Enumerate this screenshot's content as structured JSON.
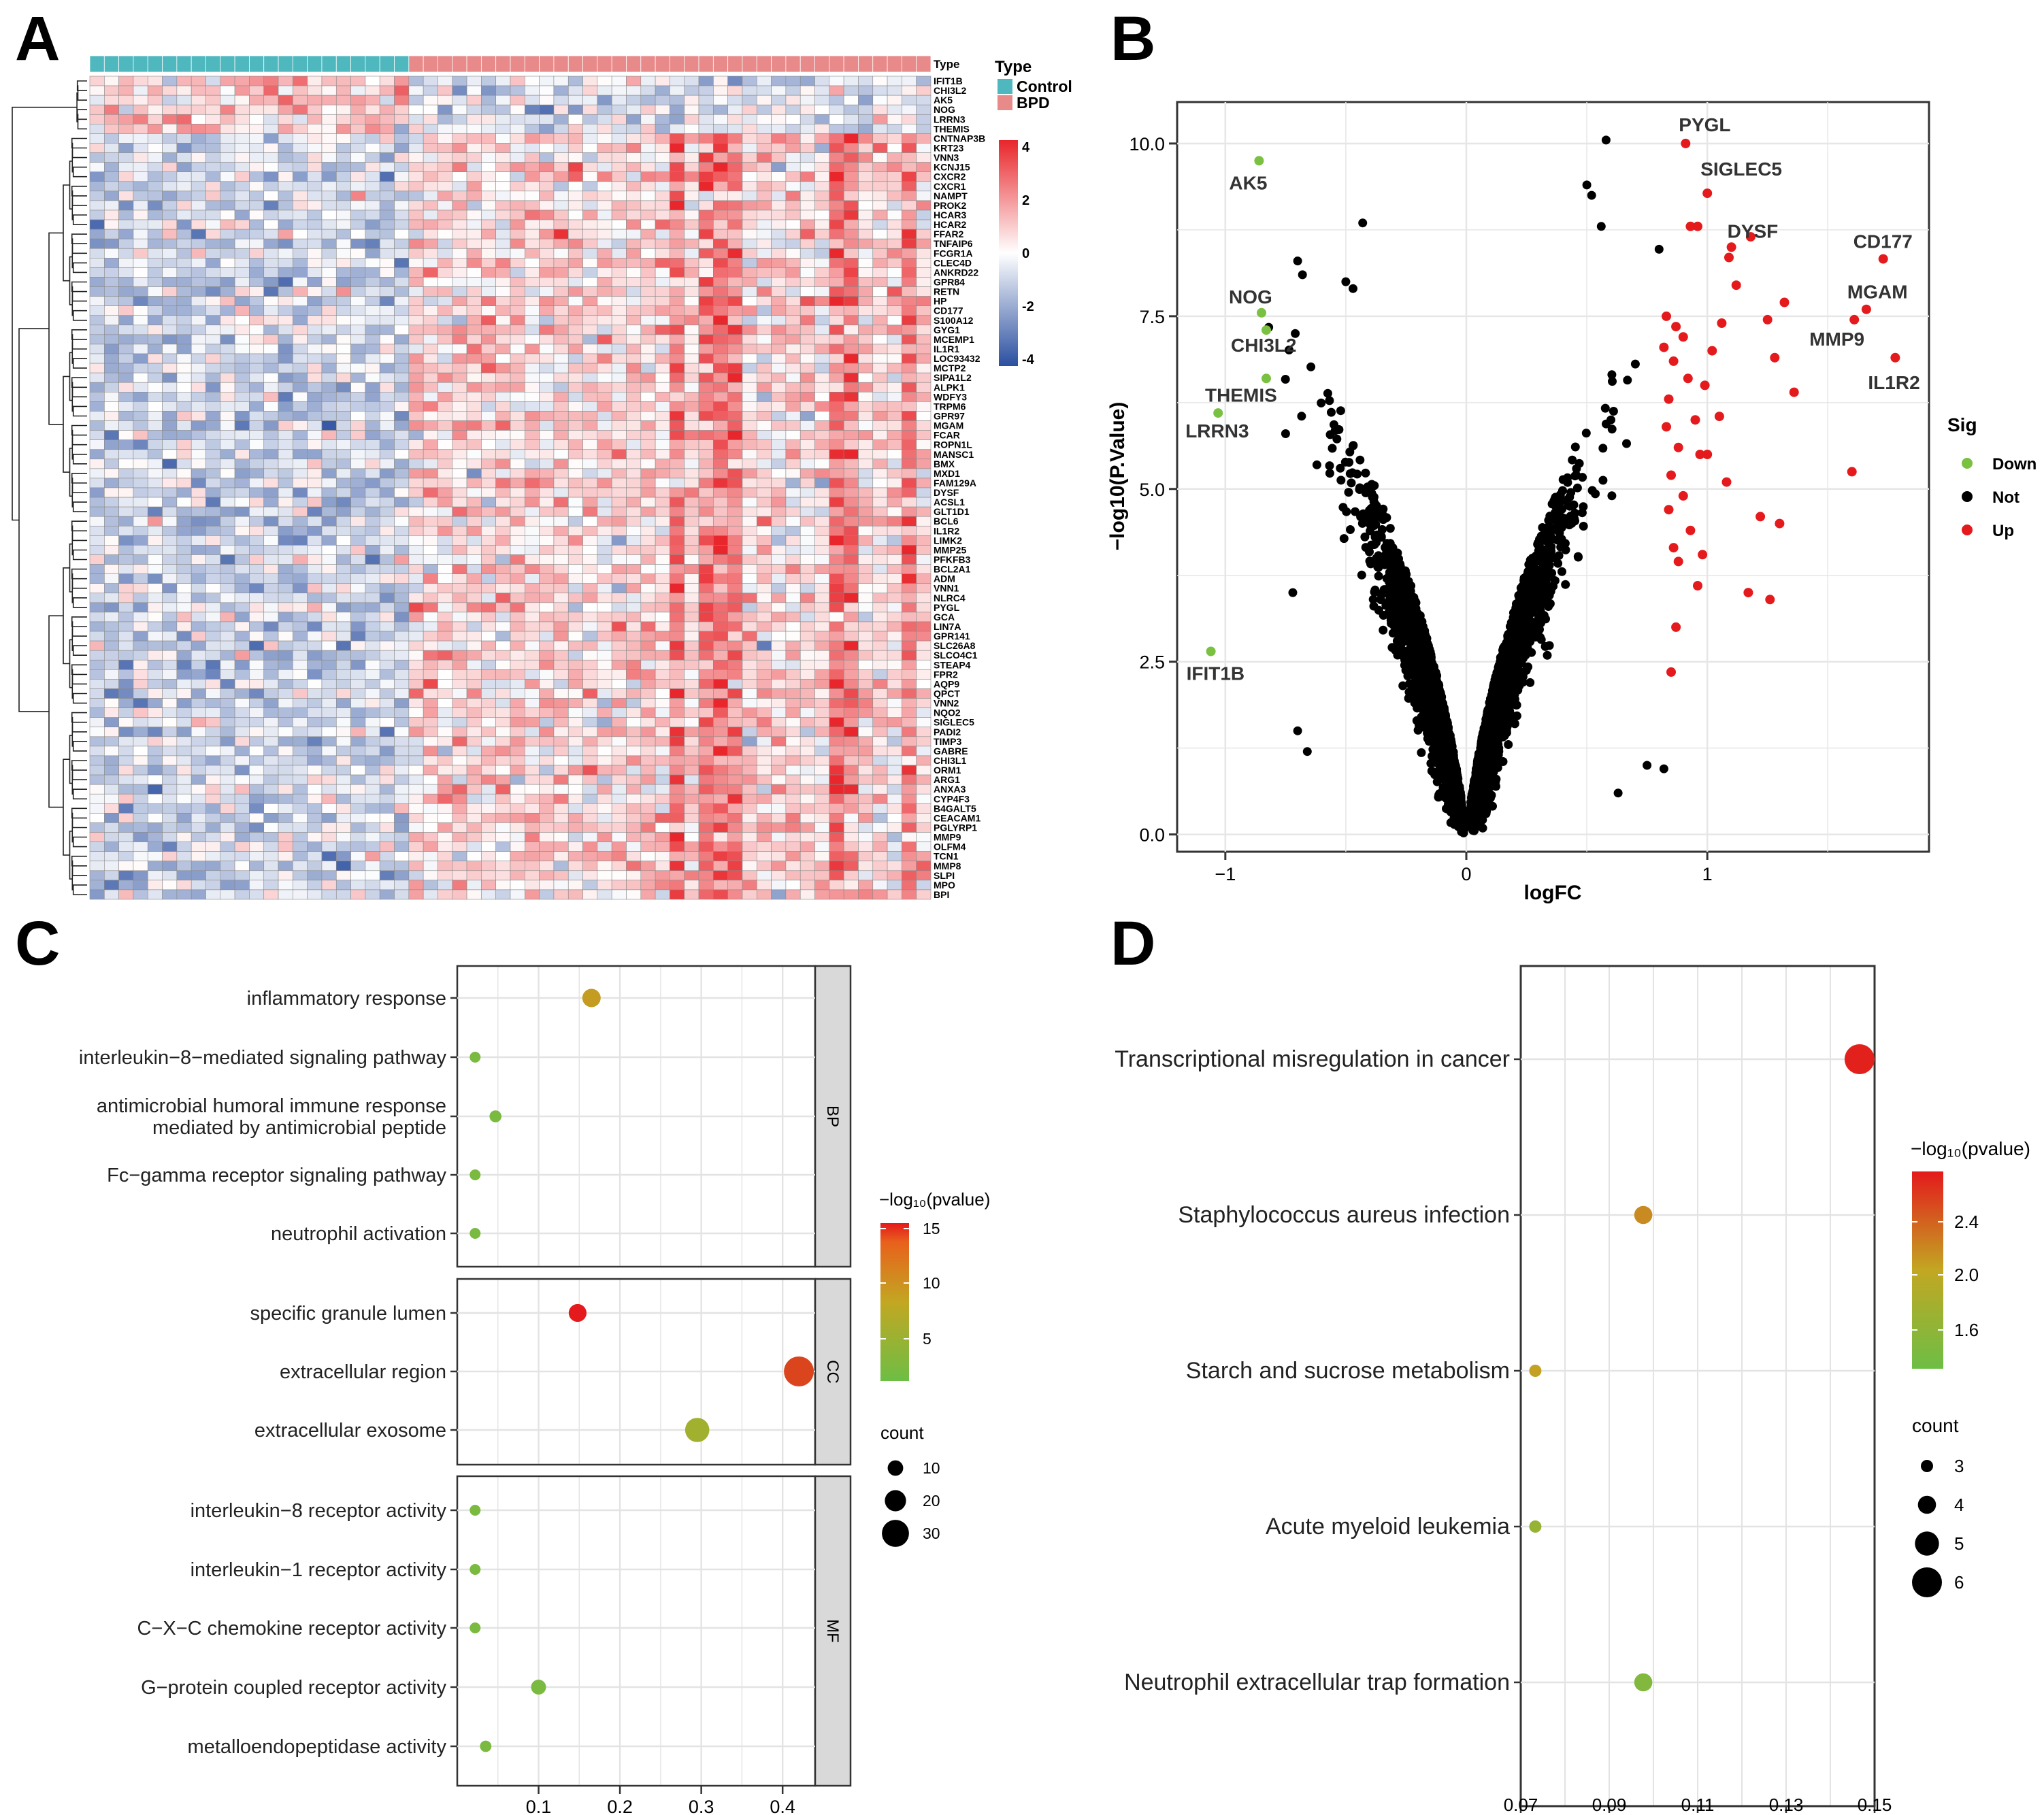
{
  "panels": {
    "A": {
      "letter": "A",
      "type_label": "Type",
      "legend_title": "Type",
      "groups": [
        {
          "name": "Control",
          "color": "#4EB8BE",
          "n": 22
        },
        {
          "name": "BPD",
          "color": "#E8898A",
          "n": 36
        }
      ],
      "color_scale": {
        "low": "#2B4FA0",
        "mid": "#FFFFFF",
        "high": "#E8262B",
        "ticks": [
          "4",
          "2",
          "0",
          "-2",
          "-4"
        ]
      },
      "genes": [
        "IFIT1B",
        "CHI3L2",
        "AK5",
        "NOG",
        "LRRN3",
        "THEMIS",
        "CNTNAP3B",
        "KRT23",
        "VNN3",
        "KCNJ15",
        "CXCR2",
        "CXCR1",
        "NAMPT",
        "PROK2",
        "HCAR3",
        "HCAR2",
        "FFAR2",
        "TNFAIP6",
        "FCGR1A",
        "CLEC4D",
        "ANKRD22",
        "GPR84",
        "RETN",
        "HP",
        "CD177",
        "S100A12",
        "GYG1",
        "MCEMP1",
        "IL1R1",
        "LOC93432",
        "MCTP2",
        "SIPA1L2",
        "ALPK1",
        "WDFY3",
        "TRPM6",
        "GPR97",
        "MGAM",
        "FCAR",
        "ROPN1L",
        "MANSC1",
        "BMX",
        "MXD1",
        "FAM129A",
        "DYSF",
        "ACSL1",
        "GLT1D1",
        "BCL6",
        "IL1R2",
        "LIMK2",
        "MMP25",
        "PFKFB3",
        "BCL2A1",
        "ADM",
        "VNN1",
        "NLRC4",
        "PYGL",
        "GCA",
        "LIN7A",
        "GPR141",
        "SLC26A8",
        "SLCO4C1",
        "STEAP4",
        "FPR2",
        "AQP9",
        "QPCT",
        "VNN2",
        "NQO2",
        "SIGLEC5",
        "PADI2",
        "TIMP3",
        "GABRE",
        "CHI3L1",
        "ORM1",
        "ARG1",
        "ANXA3",
        "CYP4F3",
        "B4GALT5",
        "CEACAM1",
        "PGLYRP1",
        "MMP9",
        "OLFM4",
        "TCN1",
        "MMP8",
        "SLPI",
        "MPO",
        "BPI"
      ]
    },
    "B": {
      "letter": "B",
      "legend_title": "Sig",
      "labels": [
        {
          "gene": "PYGL",
          "x": 0.91,
          "y": 10.0
        },
        {
          "gene": "SIGLEC5",
          "x": 1.0,
          "y": 9.28
        },
        {
          "gene": "DYSF",
          "x": 1.1,
          "y": 8.5
        },
        {
          "gene": "CD177",
          "x": 1.73,
          "y": 8.33
        },
        {
          "gene": "MGAM",
          "x": 1.66,
          "y": 7.6
        },
        {
          "gene": "MMP9",
          "x": 1.61,
          "y": 7.45
        },
        {
          "gene": "IL1R2",
          "x": 1.78,
          "y": 6.9
        },
        {
          "gene": "AK5",
          "x": -0.86,
          "y": 9.75
        },
        {
          "gene": "NOG",
          "x": -0.85,
          "y": 7.55
        },
        {
          "gene": "CHI3L2",
          "x": -0.83,
          "y": 7.3
        },
        {
          "gene": "THEMIS",
          "x": -0.83,
          "y": 6.6
        },
        {
          "gene": "LRRN3",
          "x": -1.03,
          "y": 6.1
        },
        {
          "gene": "IFIT1B",
          "x": -1.06,
          "y": 2.65
        }
      ]
    },
    "C": {
      "letter": "C",
      "colorbar_title": "−log₁₀(pvalue)",
      "colorbar_ticks": [
        "15",
        "10",
        "5"
      ],
      "size_title": "count",
      "size_ticks": [
        10,
        20,
        30
      ],
      "facets": [
        "BP",
        "CC",
        "MF"
      ]
    },
    "D": {
      "letter": "D",
      "colorbar_title": "−log₁₀(pvalue)",
      "colorbar_ticks": [
        "2.4",
        "2.0",
        "1.6"
      ],
      "size_title": "count",
      "size_ticks": [
        3,
        4,
        5,
        6
      ]
    }
  },
  "chart_data": [
    {
      "panel": "A",
      "type": "heatmap",
      "rows": "genes (86)",
      "columns": "samples (22 Control, 36 BPD)",
      "value_range": [
        -4,
        4
      ],
      "row_order": "see panels.A.genes"
    },
    {
      "panel": "B",
      "type": "scatter",
      "xlabel": "logFC",
      "ylabel": "−log10(P.Value)",
      "xlim": [
        -1.2,
        1.92
      ],
      "ylim": [
        -0.25,
        10.6
      ],
      "x_ticks": [
        {
          "v": -1,
          "t": "−1"
        },
        {
          "v": 0,
          "t": "0"
        },
        {
          "v": 1,
          "t": "1"
        }
      ],
      "y_ticks": [
        {
          "v": 0,
          "t": "0.0"
        },
        {
          "v": 2.5,
          "t": "2.5"
        },
        {
          "v": 5,
          "t": "5.0"
        },
        {
          "v": 7.5,
          "t": "7.5"
        },
        {
          "v": 10,
          "t": "10.0"
        }
      ],
      "series": [
        {
          "name": "Down",
          "color": "#7AC142",
          "points": [
            [
              -1.06,
              2.65
            ],
            [
              -1.03,
              6.1
            ],
            [
              -0.83,
              6.6
            ],
            [
              -0.83,
              7.3
            ],
            [
              -0.85,
              7.55
            ],
            [
              -0.86,
              9.75
            ]
          ]
        },
        {
          "name": "Not",
          "color": "#000000",
          "points": "thousands of genes forming a V-shaped cloud (|logFC| < 0.8)"
        },
        {
          "name": "Up",
          "color": "#E41A1C",
          "points": [
            [
              0.91,
              10.0
            ],
            [
              1.0,
              9.28
            ],
            [
              1.1,
              8.5
            ],
            [
              1.73,
              8.33
            ],
            [
              1.66,
              7.6
            ],
            [
              1.61,
              7.45
            ],
            [
              1.78,
              6.9
            ],
            [
              1.09,
              8.35
            ],
            [
              0.93,
              8.8
            ],
            [
              0.96,
              8.8
            ],
            [
              1.12,
              7.95
            ],
            [
              1.18,
              8.65
            ],
            [
              1.06,
              7.4
            ],
            [
              1.25,
              7.45
            ],
            [
              1.32,
              7.7
            ],
            [
              1.28,
              6.9
            ],
            [
              1.36,
              6.4
            ],
            [
              1.6,
              5.25
            ],
            [
              1.22,
              4.6
            ],
            [
              1.3,
              4.5
            ],
            [
              1.17,
              3.5
            ],
            [
              1.26,
              3.4
            ],
            [
              0.85,
              2.35
            ],
            [
              0.87,
              3.0
            ]
          ]
        }
      ]
    },
    {
      "panel": "C",
      "type": "scatter",
      "subtype": "dot plot",
      "x_ticks": [
        {
          "v": 0.1,
          "t": "0.1"
        },
        {
          "v": 0.2,
          "t": "0.2"
        },
        {
          "v": 0.3,
          "t": "0.3"
        },
        {
          "v": 0.4,
          "t": "0.4"
        }
      ],
      "xlim": [
        0.0,
        0.44
      ],
      "color_range": [
        2,
        15
      ],
      "count_range": [
        2,
        35
      ],
      "facets": [
        {
          "name": "BP",
          "terms": [
            {
              "term": "inflammatory response",
              "x": 0.165,
              "count": 15,
              "logp": 9
            },
            {
              "term": "interleukin−8−mediated signaling pathway",
              "x": 0.022,
              "count": 2,
              "logp": 3
            },
            {
              "term": "antimicrobial humoral immune response\nmediated by antimicrobial peptide",
              "x": 0.047,
              "count": 4,
              "logp": 3
            },
            {
              "term": "Fc−gamma receptor signaling pathway",
              "x": 0.022,
              "count": 2,
              "logp": 3
            },
            {
              "term": "neutrophil activation",
              "x": 0.022,
              "count": 2,
              "logp": 3
            }
          ]
        },
        {
          "name": "CC",
          "terms": [
            {
              "term": "specific granule lumen",
              "x": 0.148,
              "count": 14,
              "logp": 15
            },
            {
              "term": "extracellular region",
              "x": 0.42,
              "count": 35,
              "logp": 13
            },
            {
              "term": "extracellular exosome",
              "x": 0.295,
              "count": 25,
              "logp": 6
            }
          ]
        },
        {
          "name": "MF",
          "terms": [
            {
              "term": "interleukin−8 receptor activity",
              "x": 0.022,
              "count": 2,
              "logp": 3
            },
            {
              "term": "interleukin−1 receptor activity",
              "x": 0.022,
              "count": 2,
              "logp": 3
            },
            {
              "term": "C−X−C chemokine receptor activity",
              "x": 0.022,
              "count": 2,
              "logp": 3
            },
            {
              "term": "G−protein coupled receptor activity",
              "x": 0.1,
              "count": 9,
              "logp": 3
            },
            {
              "term": "metalloendopeptidase activity",
              "x": 0.035,
              "count": 3,
              "logp": 3
            }
          ]
        }
      ]
    },
    {
      "panel": "D",
      "type": "scatter",
      "subtype": "dot plot",
      "x_ticks": [
        {
          "v": 0.07,
          "t": "0.07"
        },
        {
          "v": 0.09,
          "t": "0.09"
        },
        {
          "v": 0.11,
          "t": "0.11"
        },
        {
          "v": 0.13,
          "t": "0.13"
        },
        {
          "v": 0.15,
          "t": "0.15"
        }
      ],
      "xlim": [
        0.07,
        0.15
      ],
      "color_range": [
        1.4,
        2.65
      ],
      "count_range": [
        3,
        6
      ],
      "terms": [
        {
          "term": "Transcriptional misregulation in cancer",
          "x": 0.1466,
          "count": 6,
          "logp": 2.62
        },
        {
          "term": "Staphylococcus aureus infection",
          "x": 0.0977,
          "count": 4,
          "logp": 2.15
        },
        {
          "term": "Starch and sucrose metabolism",
          "x": 0.0733,
          "count": 3,
          "logp": 2.05
        },
        {
          "term": "Acute myeloid leukemia",
          "x": 0.0733,
          "count": 3,
          "logp": 1.7
        },
        {
          "term": "Neutrophil extracellular trap formation",
          "x": 0.0977,
          "count": 4,
          "logp": 1.55
        }
      ]
    }
  ]
}
